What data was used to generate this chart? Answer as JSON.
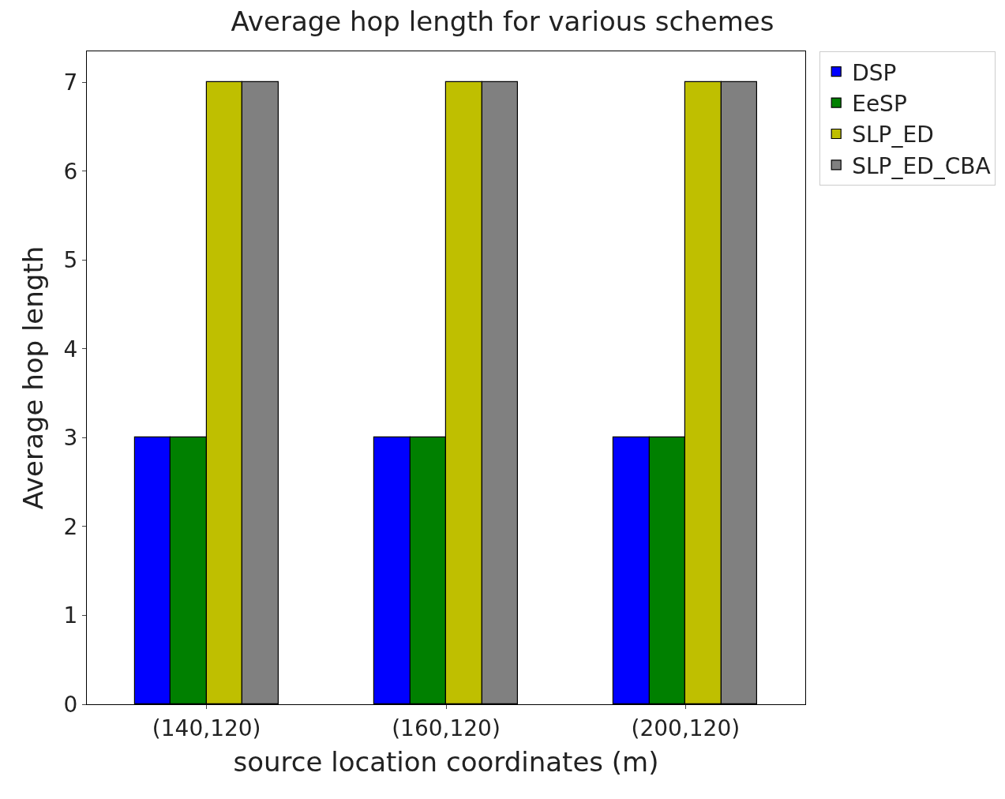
{
  "chart_data": {
    "type": "bar",
    "title": "Average hop length for various schemes",
    "xlabel": "source location coordinates (m)",
    "ylabel": "Average hop length",
    "categories": [
      "(140,120)",
      "(160,120)",
      "(200,120)"
    ],
    "series": [
      {
        "name": "DSP",
        "color": "#0000ff",
        "values": [
          3,
          3,
          3
        ]
      },
      {
        "name": "EeSP",
        "color": "#008000",
        "values": [
          3,
          3,
          3
        ]
      },
      {
        "name": "SLP_ED",
        "color": "#bfbf00",
        "values": [
          7,
          7,
          7
        ]
      },
      {
        "name": "SLP_ED_CBA",
        "color": "#808080",
        "values": [
          7,
          7,
          7
        ]
      }
    ],
    "ylim": [
      0,
      7.35
    ],
    "yticks": [
      0,
      1,
      2,
      3,
      4,
      5,
      6,
      7
    ],
    "legend": "top right"
  }
}
